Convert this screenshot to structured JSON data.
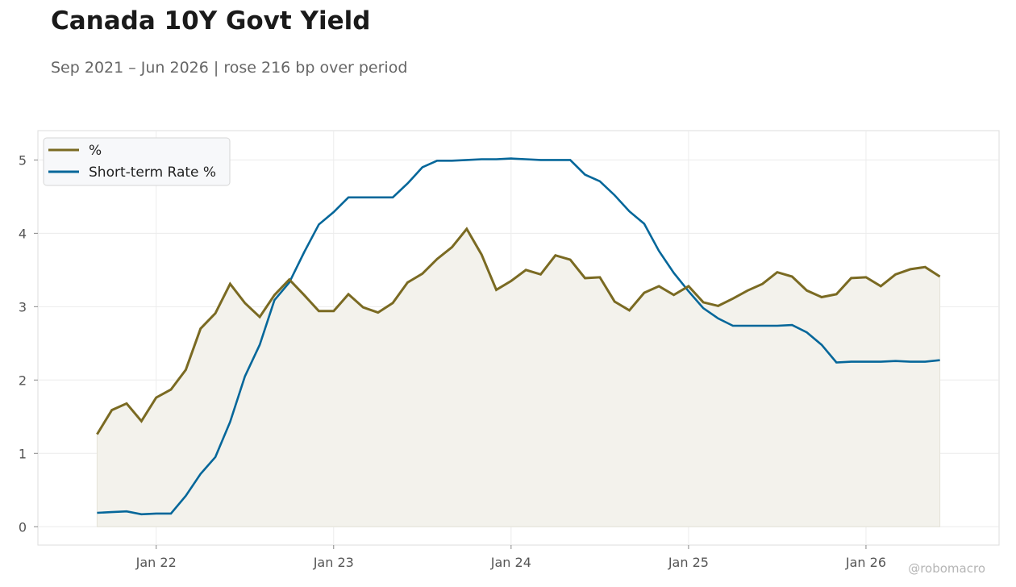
{
  "header": {
    "title": "Canada 10Y Govt Yield",
    "subtitle": "Sep 2021 – Jun 2026 | rose 216 bp over period"
  },
  "watermark": "@robomacro",
  "colors": {
    "yield": "#7a6a22",
    "short_rate": "#05679a",
    "fill": "#f3f2ec",
    "grid": "#ececec",
    "frame": "#dddddd"
  },
  "chart_data": {
    "type": "line",
    "x_axis": {
      "ticks": [
        "2022-01",
        "2023-01",
        "2024-01",
        "2025-01",
        "2026-01"
      ],
      "tick_labels": [
        "Jan 22",
        "Jan 23",
        "Jan 24",
        "Jan 25",
        "Jan 26"
      ],
      "range": [
        "2021-05",
        "2026-10"
      ]
    },
    "y_axis": {
      "ticks": [
        0,
        1,
        2,
        3,
        4,
        5
      ],
      "ylim": [
        -0.25,
        5.4
      ]
    },
    "grid": true,
    "legend": "top-left",
    "x": [
      "2021-09",
      "2021-10",
      "2021-11",
      "2021-12",
      "2022-01",
      "2022-02",
      "2022-03",
      "2022-04",
      "2022-05",
      "2022-06",
      "2022-07",
      "2022-08",
      "2022-09",
      "2022-10",
      "2022-11",
      "2022-12",
      "2023-01",
      "2023-02",
      "2023-03",
      "2023-04",
      "2023-05",
      "2023-06",
      "2023-07",
      "2023-08",
      "2023-09",
      "2023-10",
      "2023-11",
      "2023-12",
      "2024-01",
      "2024-02",
      "2024-03",
      "2024-04",
      "2024-05",
      "2024-06",
      "2024-07",
      "2024-08",
      "2024-09",
      "2024-10",
      "2024-11",
      "2024-12",
      "2025-01",
      "2025-02",
      "2025-03",
      "2025-04",
      "2025-05",
      "2025-06",
      "2025-07",
      "2025-08",
      "2025-09",
      "2025-10",
      "2025-11",
      "2025-12",
      "2026-01",
      "2026-02",
      "2026-03",
      "2026-04",
      "2026-05",
      "2026-06"
    ],
    "series": [
      {
        "name": "%",
        "values": [
          1.26,
          1.59,
          1.68,
          1.44,
          1.76,
          1.87,
          2.14,
          2.7,
          2.91,
          3.31,
          3.05,
          2.86,
          3.16,
          3.37,
          3.16,
          2.94,
          2.94,
          3.17,
          2.99,
          2.92,
          3.05,
          3.33,
          3.45,
          3.65,
          3.81,
          4.06,
          3.71,
          3.23,
          3.35,
          3.5,
          3.44,
          3.7,
          3.64,
          3.39,
          3.4,
          3.07,
          2.95,
          3.19,
          3.28,
          3.16,
          3.28,
          3.06,
          3.01,
          3.11,
          3.22,
          3.31,
          3.47,
          3.41,
          3.22,
          3.13,
          3.17,
          3.39,
          3.4,
          3.28,
          3.44,
          3.51,
          3.54,
          3.41
        ]
      },
      {
        "name": "Short-term Rate %",
        "values": [
          0.19,
          0.2,
          0.21,
          0.17,
          0.18,
          0.18,
          0.42,
          0.72,
          0.95,
          1.43,
          2.05,
          2.48,
          3.09,
          3.33,
          3.74,
          4.12,
          4.29,
          4.49,
          4.49,
          4.49,
          4.49,
          4.68,
          4.9,
          4.99,
          4.99,
          5.0,
          5.01,
          5.01,
          5.02,
          5.01,
          5.0,
          5.0,
          5.0,
          4.8,
          4.71,
          4.52,
          4.3,
          4.13,
          3.76,
          3.46,
          3.21,
          2.98,
          2.84,
          2.74,
          2.74,
          2.74,
          2.74,
          2.75,
          2.65,
          2.48,
          2.24,
          2.25,
          2.25,
          2.25,
          2.26,
          2.25,
          2.25,
          2.27
        ]
      }
    ]
  }
}
